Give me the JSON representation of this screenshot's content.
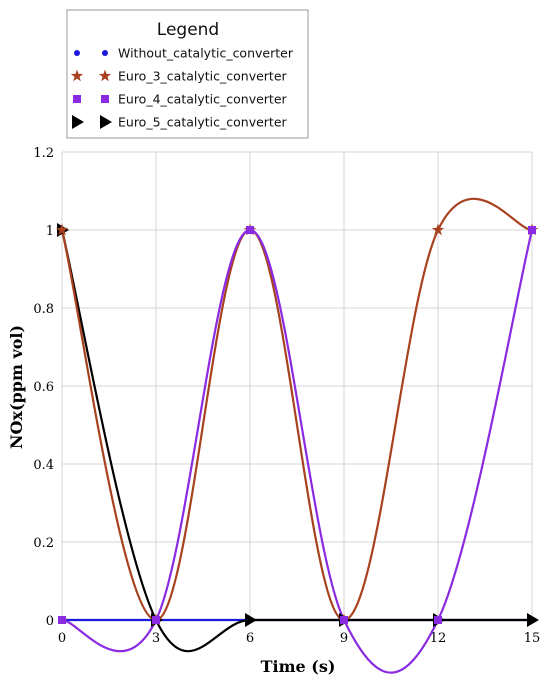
{
  "chart_data": {
    "type": "line",
    "xlabel": "Time (s)",
    "ylabel": "NOx(ppm vol)",
    "xlim": [
      0,
      15
    ],
    "ylim": [
      0,
      1.2
    ],
    "xticks": [
      "0",
      "3",
      "6",
      "9",
      "12",
      "15"
    ],
    "yticks": [
      "0",
      "0.2",
      "0.4",
      "0.6",
      "0.8",
      "1",
      "1.2"
    ],
    "grid": true,
    "legend": {
      "title": "Legend",
      "position": "top-left"
    },
    "series": [
      {
        "name": "Without_catalytic_converter",
        "color": "#1a1adc",
        "marker": "circle",
        "x": [
          0,
          3,
          6,
          9,
          12,
          15
        ],
        "y": [
          0,
          0,
          0,
          0,
          0,
          0
        ]
      },
      {
        "name": "Euro_3_catalytic_converter",
        "color": "#a8421e",
        "marker": "star",
        "x": [
          0,
          3,
          6,
          9,
          12,
          15
        ],
        "y": [
          1,
          0,
          1,
          0,
          1,
          1
        ]
      },
      {
        "name": "Euro_4_catalytic_converter",
        "color": "#8a2be2",
        "marker": "square",
        "x": [
          0,
          3,
          6,
          9,
          12,
          15
        ],
        "y": [
          0,
          0,
          1,
          0,
          0,
          1
        ]
      },
      {
        "name": "Euro_5_catalytic_converter",
        "color": "#000000",
        "marker": "triangle",
        "x": [
          0,
          3,
          6,
          9,
          12,
          15
        ],
        "y": [
          1,
          0,
          0,
          0,
          0,
          0
        ]
      }
    ]
  }
}
